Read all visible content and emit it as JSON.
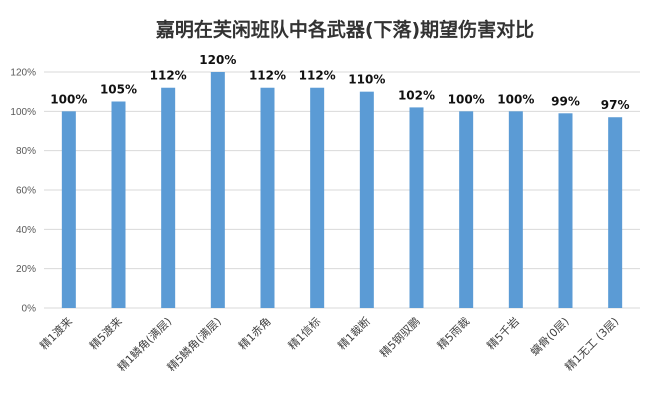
{
  "chart_data": {
    "type": "bar",
    "title": "嘉明在芙闲班队中各武器(下落)期望伤害对比",
    "xlabel": "",
    "ylabel": "",
    "ylim": [
      0,
      1.2
    ],
    "y_ticks": [
      "0%",
      "20%",
      "40%",
      "60%",
      "80%",
      "100%",
      "120%"
    ],
    "grid": true,
    "legend": "none",
    "bar_color": "#5b9bd5",
    "categories": [
      "精1渡来",
      "精5渡来",
      "精1鳞角(满层)",
      "精5鳞角(满层)",
      "精1赤角",
      "精1信标",
      "精1裁断",
      "精5钢驭鹏",
      "精5雨裁",
      "精5千岩",
      "螭骨(0层)",
      "精1无工 (3层)"
    ],
    "values": [
      1.0,
      1.05,
      1.12,
      1.2,
      1.12,
      1.12,
      1.1,
      1.02,
      1.0,
      1.0,
      0.99,
      0.97
    ],
    "data_labels": [
      "100%",
      "105%",
      "112%",
      "120%",
      "112%",
      "112%",
      "110%",
      "102%",
      "100%",
      "100%",
      "99%",
      "97%"
    ]
  }
}
